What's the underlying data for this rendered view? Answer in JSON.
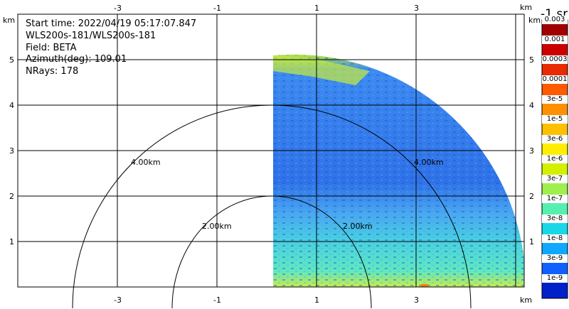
{
  "info": {
    "start_time": "Start time: 2022/04/19 05:17:07.847",
    "instrument": "WLS200s-181/WLS200s-181",
    "field": "Field: BETA",
    "azimuth": "Azimuth(deg): 109.01",
    "nrays": "NRays: 178"
  },
  "axes": {
    "x_unit": "km",
    "y_unit": "km",
    "x_ticks": [
      "-3",
      "-1",
      "1",
      "3"
    ],
    "y_ticks": [
      "1",
      "2",
      "3",
      "4",
      "5"
    ]
  },
  "rings": {
    "inner": "2.00km",
    "outer": "4.00km"
  },
  "colorbar": {
    "title": "-1 sr",
    "labels": [
      "0.003",
      "0.001",
      "0.0003",
      "0.0001",
      "3e-5",
      "1e-5",
      "3e-6",
      "1e-6",
      "3e-7",
      "1e-7",
      "3e-8",
      "1e-8",
      "3e-9",
      "1e-9"
    ],
    "colors": [
      "#a00000",
      "#cc0000",
      "#ea2a00",
      "#ff5a00",
      "#ff9100",
      "#ffc000",
      "#ffee00",
      "#d4f000",
      "#9ef04e",
      "#55f0b0",
      "#18d8e8",
      "#10a8ff",
      "#1060ff",
      "#0020c8"
    ]
  }
}
